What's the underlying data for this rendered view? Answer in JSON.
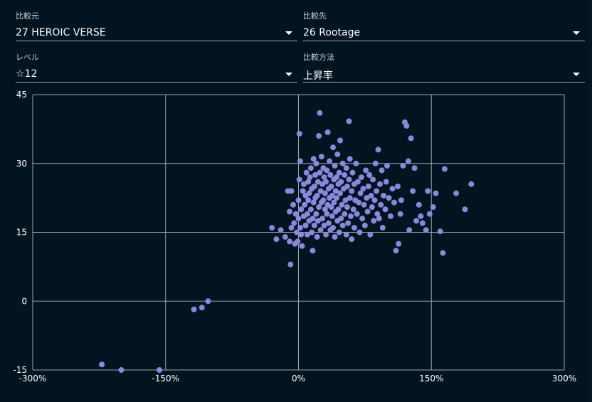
{
  "controls": {
    "compare_from": {
      "label": "比較元",
      "value": "27 HEROIC VERSE"
    },
    "compare_to": {
      "label": "比較先",
      "value": "26 Rootage"
    },
    "level": {
      "label": "レベル",
      "value": "☆12"
    },
    "method": {
      "label": "比較方法",
      "value": "上昇率"
    }
  },
  "colors": {
    "background": "#011420",
    "grid": "#9aa4ab",
    "point": "#8a87dc"
  },
  "chart_data": {
    "type": "scatter",
    "title": "",
    "xlabel": "",
    "ylabel": "",
    "xlim": [
      -300,
      300
    ],
    "ylim": [
      -15,
      45
    ],
    "xticks": [
      -300,
      -150,
      0,
      150,
      300
    ],
    "yticks": [
      -15,
      0,
      15,
      30,
      45
    ],
    "xtick_labels": [
      "-300%",
      "-150%",
      "0%",
      "150%",
      "300%"
    ],
    "ytick_labels": [
      "-15",
      "0",
      "15",
      "30",
      "45"
    ],
    "grid": true,
    "series": [
      {
        "points": [
          [
            -222,
            -13.8
          ],
          [
            -200,
            -15
          ],
          [
            -157,
            -15
          ],
          [
            -118,
            -1.8
          ],
          [
            -109,
            -1.4
          ],
          [
            -102,
            0
          ],
          [
            -30,
            16
          ],
          [
            -25,
            13.5
          ],
          [
            -20,
            15.5
          ],
          [
            -15,
            14
          ],
          [
            -12,
            24
          ],
          [
            -10,
            19.5
          ],
          [
            -10,
            13
          ],
          [
            -9,
            8
          ],
          [
            -8,
            24
          ],
          [
            -8,
            16
          ],
          [
            -6,
            21
          ],
          [
            -5,
            17
          ],
          [
            -4,
            12.5
          ],
          [
            -3,
            19
          ],
          [
            -2,
            15
          ],
          [
            -1,
            13
          ],
          [
            0,
            18
          ],
          [
            0,
            22
          ],
          [
            1,
            26.5
          ],
          [
            1,
            36.5
          ],
          [
            2,
            16
          ],
          [
            2,
            30.5
          ],
          [
            3,
            20
          ],
          [
            3,
            14.5
          ],
          [
            4,
            12
          ],
          [
            5,
            24
          ],
          [
            6,
            25.5
          ],
          [
            6,
            18.5
          ],
          [
            7,
            21
          ],
          [
            8,
            23
          ],
          [
            8,
            16.5
          ],
          [
            9,
            28
          ],
          [
            10,
            19
          ],
          [
            10,
            14.5
          ],
          [
            11,
            22
          ],
          [
            11,
            26
          ],
          [
            12,
            17.5
          ],
          [
            12,
            23.5
          ],
          [
            13,
            27
          ],
          [
            14,
            20
          ],
          [
            14,
            29
          ],
          [
            15,
            15
          ],
          [
            15,
            24.5
          ],
          [
            16,
            18
          ],
          [
            16,
            11
          ],
          [
            17,
            21.5
          ],
          [
            17,
            31
          ],
          [
            18,
            16.5
          ],
          [
            18,
            25
          ],
          [
            19,
            22.5
          ],
          [
            19,
            27.5
          ],
          [
            20,
            19
          ],
          [
            20,
            30
          ],
          [
            21,
            14
          ],
          [
            21,
            23
          ],
          [
            22,
            26
          ],
          [
            22,
            17.5
          ],
          [
            23,
            20.5
          ],
          [
            23,
            36
          ],
          [
            24,
            41
          ],
          [
            24,
            28
          ],
          [
            25,
            15.5
          ],
          [
            25,
            24
          ],
          [
            26,
            21.5
          ],
          [
            26,
            31.5
          ],
          [
            27,
            18
          ],
          [
            27,
            25.5
          ],
          [
            28,
            22
          ],
          [
            28,
            29
          ],
          [
            29,
            16.5
          ],
          [
            29,
            27
          ],
          [
            30,
            20
          ],
          [
            30,
            23.5
          ],
          [
            31,
            14.5
          ],
          [
            31,
            26
          ],
          [
            32,
            19
          ],
          [
            32,
            28.5
          ],
          [
            33,
            21
          ],
          [
            33,
            36.8
          ],
          [
            34,
            17
          ],
          [
            34,
            24.5
          ],
          [
            35,
            22.5
          ],
          [
            35,
            30.5
          ],
          [
            36,
            15.5
          ],
          [
            36,
            27.5
          ],
          [
            37,
            20.5
          ],
          [
            37,
            25
          ],
          [
            38,
            18.5
          ],
          [
            38,
            23
          ],
          [
            39,
            33.5
          ],
          [
            39,
            16
          ],
          [
            40,
            26.5
          ],
          [
            40,
            21.5
          ],
          [
            41,
            29.5
          ],
          [
            41,
            14
          ],
          [
            42,
            24
          ],
          [
            42,
            19.5
          ],
          [
            43,
            27
          ],
          [
            43,
            22.5
          ],
          [
            44,
            17.5
          ],
          [
            44,
            32
          ],
          [
            45,
            25.5
          ],
          [
            45,
            20
          ],
          [
            46,
            15
          ],
          [
            46,
            28
          ],
          [
            47,
            23.5
          ],
          [
            47,
            35
          ],
          [
            48,
            18
          ],
          [
            48,
            26
          ],
          [
            49,
            21
          ],
          [
            50,
            30
          ],
          [
            50,
            16.5
          ],
          [
            51,
            24.5
          ],
          [
            52,
            19
          ],
          [
            52,
            27.5
          ],
          [
            53,
            22
          ],
          [
            54,
            14.5
          ],
          [
            54,
            29
          ],
          [
            55,
            25
          ],
          [
            55,
            20.5
          ],
          [
            56,
            17
          ],
          [
            57,
            26.5
          ],
          [
            57,
            39.2
          ],
          [
            58,
            22.5
          ],
          [
            58,
            31
          ],
          [
            59,
            18.5
          ],
          [
            60,
            24
          ],
          [
            60,
            13.5
          ],
          [
            61,
            28
          ],
          [
            62,
            20
          ],
          [
            63,
            25.5
          ],
          [
            63,
            16
          ],
          [
            64,
            22
          ],
          [
            65,
            30
          ],
          [
            66,
            19
          ],
          [
            67,
            26
          ],
          [
            68,
            21.5
          ],
          [
            69,
            15
          ],
          [
            70,
            23.5
          ],
          [
            71,
            27
          ],
          [
            72,
            18
          ],
          [
            73,
            24.5
          ],
          [
            74,
            21
          ],
          [
            75,
            16.5
          ],
          [
            76,
            28.5
          ],
          [
            77,
            22.5
          ],
          [
            78,
            19.5
          ],
          [
            79,
            25
          ],
          [
            80,
            27.5
          ],
          [
            81,
            14.5
          ],
          [
            82,
            23
          ],
          [
            83,
            20.5
          ],
          [
            84,
            26.5
          ],
          [
            85,
            17.5
          ],
          [
            86,
            22
          ],
          [
            87,
            30
          ],
          [
            88,
            24
          ],
          [
            89,
            19
          ],
          [
            90,
            33
          ],
          [
            91,
            18
          ],
          [
            92,
            25.5
          ],
          [
            93,
            21
          ],
          [
            94,
            28.5
          ],
          [
            95,
            16
          ],
          [
            96,
            23
          ],
          [
            98,
            20
          ],
          [
            99,
            26
          ],
          [
            100,
            29.5
          ],
          [
            102,
            22.5
          ],
          [
            104,
            18.5
          ],
          [
            106,
            24.5
          ],
          [
            108,
            21.5
          ],
          [
            110,
            11
          ],
          [
            112,
            25
          ],
          [
            113,
            12.5
          ],
          [
            115,
            19
          ],
          [
            116,
            22
          ],
          [
            118,
            29.5
          ],
          [
            120,
            39
          ],
          [
            122,
            38.2
          ],
          [
            124,
            30.5
          ],
          [
            125,
            15.5
          ],
          [
            127,
            35.5
          ],
          [
            129,
            24
          ],
          [
            131,
            29
          ],
          [
            133,
            17.5
          ],
          [
            136,
            21
          ],
          [
            138,
            18.5
          ],
          [
            140,
            17
          ],
          [
            144,
            15.5
          ],
          [
            146,
            24
          ],
          [
            148,
            19
          ],
          [
            152,
            20.5
          ],
          [
            155,
            23.5
          ],
          [
            160,
            15.2
          ],
          [
            163,
            10.5
          ],
          [
            165,
            28.8
          ],
          [
            178,
            23.5
          ],
          [
            188,
            20
          ],
          [
            195,
            25.5
          ]
        ]
      }
    ]
  }
}
